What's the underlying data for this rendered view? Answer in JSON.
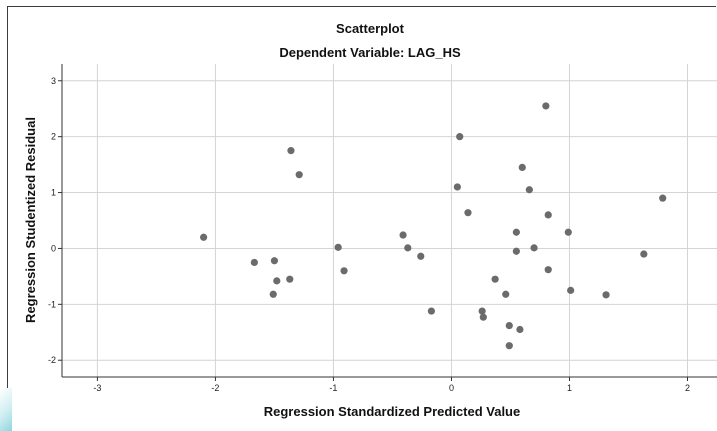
{
  "chart_data": {
    "type": "scatter",
    "title": "Scatterplot",
    "subtitle": "Dependent Variable: LAG_HS",
    "xlabel": "Regression Standardized Predicted Value",
    "ylabel": "Regression Studentized Residual",
    "xlim": [
      -3.3,
      2.25
    ],
    "ylim": [
      -2.3,
      3.3
    ],
    "xticks": [
      -3,
      -2,
      -1,
      0,
      1,
      2
    ],
    "yticks": [
      -2,
      -1,
      0,
      1,
      2,
      3
    ],
    "grid": true,
    "marker_color": "#6b6b6b",
    "points": [
      {
        "x": -2.1,
        "y": 0.2
      },
      {
        "x": -1.67,
        "y": -0.25
      },
      {
        "x": -1.5,
        "y": -0.22
      },
      {
        "x": -1.48,
        "y": -0.58
      },
      {
        "x": -1.51,
        "y": -0.82
      },
      {
        "x": -1.37,
        "y": -0.55
      },
      {
        "x": -1.36,
        "y": 1.75
      },
      {
        "x": -1.29,
        "y": 1.32
      },
      {
        "x": -0.96,
        "y": 0.02
      },
      {
        "x": -0.91,
        "y": -0.4
      },
      {
        "x": -0.41,
        "y": 0.24
      },
      {
        "x": -0.37,
        "y": 0.01
      },
      {
        "x": -0.26,
        "y": -0.14
      },
      {
        "x": -0.17,
        "y": -1.12
      },
      {
        "x": 0.05,
        "y": 1.1
      },
      {
        "x": 0.07,
        "y": 2.0
      },
      {
        "x": 0.14,
        "y": 0.64
      },
      {
        "x": 0.26,
        "y": -1.12
      },
      {
        "x": 0.27,
        "y": -1.23
      },
      {
        "x": 0.37,
        "y": -0.55
      },
      {
        "x": 0.46,
        "y": -0.82
      },
      {
        "x": 0.49,
        "y": -1.38
      },
      {
        "x": 0.49,
        "y": -1.74
      },
      {
        "x": 0.55,
        "y": 0.29
      },
      {
        "x": 0.55,
        "y": -0.05
      },
      {
        "x": 0.58,
        "y": -1.45
      },
      {
        "x": 0.6,
        "y": 1.45
      },
      {
        "x": 0.66,
        "y": 1.05
      },
      {
        "x": 0.7,
        "y": 0.01
      },
      {
        "x": 0.8,
        "y": 2.55
      },
      {
        "x": 0.82,
        "y": 0.6
      },
      {
        "x": 0.82,
        "y": -0.38
      },
      {
        "x": 0.99,
        "y": 0.29
      },
      {
        "x": 1.01,
        "y": -0.75
      },
      {
        "x": 1.31,
        "y": -0.83
      },
      {
        "x": 1.63,
        "y": -0.1
      },
      {
        "x": 1.79,
        "y": 0.9
      }
    ]
  }
}
